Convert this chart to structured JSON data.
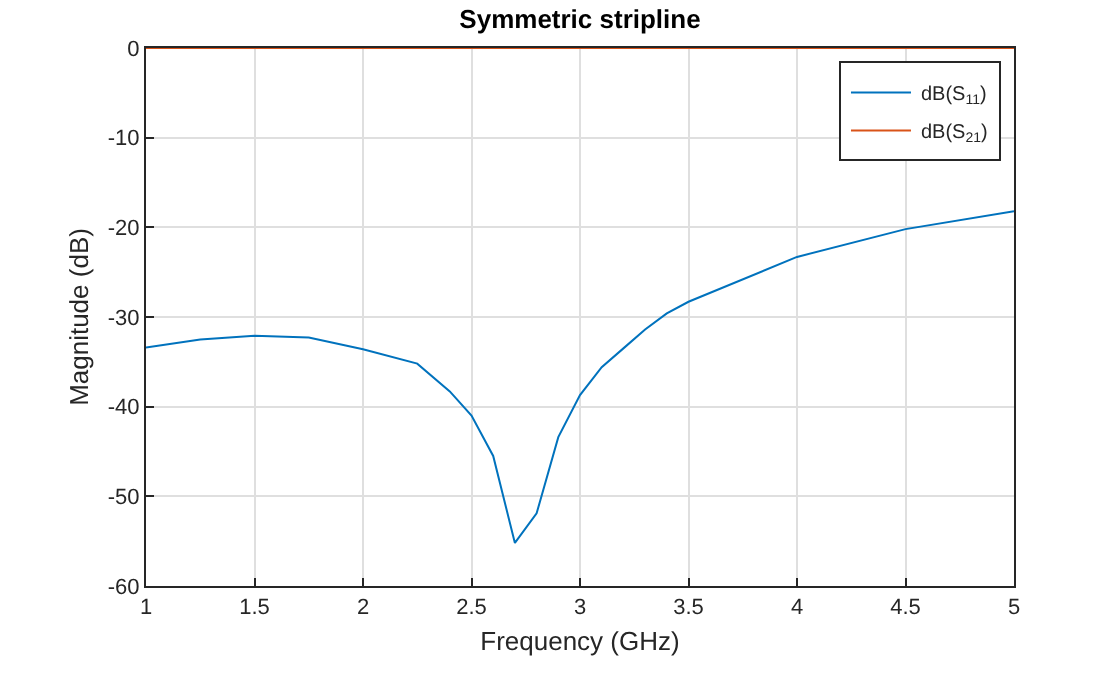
{
  "chart_data": {
    "type": "line",
    "title": "Symmetric stripline",
    "xlabel": "Frequency (GHz)",
    "ylabel": "Magnitude (dB)",
    "x": [
      1,
      1.25,
      1.5,
      1.75,
      2,
      2.25,
      2.4,
      2.5,
      2.6,
      2.7,
      2.8,
      2.9,
      3,
      3.1,
      3.2,
      3.3,
      3.4,
      3.5,
      4,
      4.5,
      5
    ],
    "series": [
      {
        "name": "dB(S$_{11}$)",
        "color": "#0072bd",
        "values": [
          -33.4,
          -32.5,
          -32.1,
          -32.3,
          -33.6,
          -35.2,
          -38.3,
          -41,
          -45.5,
          -55.2,
          -51.9,
          -43.4,
          -38.7,
          -35.6,
          -33.5,
          -31.4,
          -29.6,
          -28.3,
          -23.3,
          -20.2,
          -18.2
        ]
      },
      {
        "name": "dB(S$_{21}$)",
        "color": "#d95319",
        "values": [
          0,
          0,
          0,
          0,
          0,
          0,
          0,
          0,
          0,
          0,
          0,
          0,
          0,
          0,
          0,
          0,
          0,
          0,
          0,
          0,
          0
        ]
      }
    ],
    "xlim": [
      1,
      5
    ],
    "xticks": [
      1,
      1.5,
      2,
      2.5,
      3,
      3.5,
      4,
      4.5,
      5
    ],
    "ylim": [
      -60,
      0
    ],
    "yticks": [
      -60,
      -50,
      -40,
      -30,
      -20,
      -10,
      0
    ],
    "grid": true,
    "legend": "top right",
    "marker": "none",
    "line_style": "solid"
  }
}
